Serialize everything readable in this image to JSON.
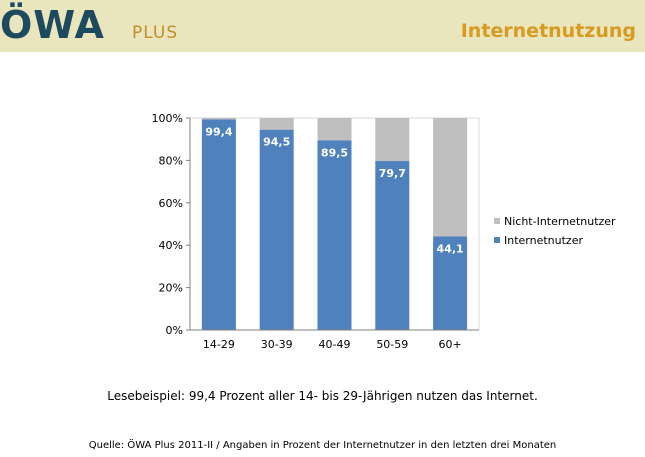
{
  "header": {
    "logo_text": "ÖWA",
    "logo_subtext": "PLUS",
    "title": "Internetnutzung"
  },
  "colors": {
    "header_bg": "#e9e5bd",
    "logo": "#1d4a5e",
    "accent": "#d89a1f",
    "internet": "#4f81bd",
    "non_internet": "#bfbfbf"
  },
  "chart_data": {
    "type": "bar",
    "stacked": true,
    "categories": [
      "14-29",
      "30-39",
      "40-49",
      "50-59",
      "60+"
    ],
    "series": [
      {
        "name": "Internetnutzer",
        "values": [
          99.4,
          94.5,
          89.5,
          79.7,
          44.1
        ],
        "color": "#4f81bd"
      },
      {
        "name": "Nicht-Internetnutzer",
        "values": [
          0.6,
          5.5,
          10.5,
          20.3,
          55.9
        ],
        "color": "#bfbfbf"
      }
    ],
    "data_labels": [
      "99,4",
      "94,5",
      "89,5",
      "79,7",
      "44,1"
    ],
    "y_ticks": [
      "0%",
      "20%",
      "40%",
      "60%",
      "80%",
      "100%"
    ],
    "ylim": [
      0,
      100
    ],
    "grid": false,
    "legend_position": "right"
  },
  "caption": "Lesebeispiel: 99,4 Prozent aller 14- bis 29-Jährigen nutzen das Internet.",
  "source": "Quelle: ÖWA Plus 2011-II / Angaben in Prozent der Internetnutzer in den letzten drei Monaten"
}
